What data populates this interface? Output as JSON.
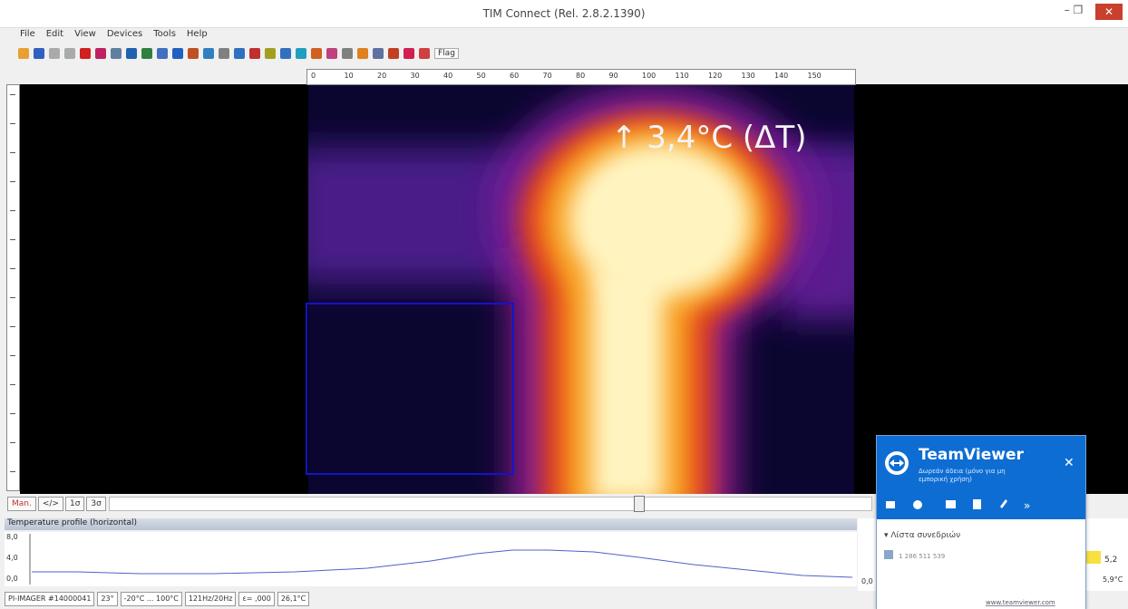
{
  "window": {
    "title": "TIM Connect (Rel. 2.8.2.1390)"
  },
  "menu": [
    "File",
    "Edit",
    "View",
    "Devices",
    "Tools",
    "Help"
  ],
  "toolbar": {
    "flag": "Flag"
  },
  "ruler": [
    "0",
    "10",
    "20",
    "30",
    "40",
    "50",
    "60",
    "70",
    "80",
    "90",
    "100",
    "110",
    "120",
    "130",
    "140",
    "150"
  ],
  "view": {
    "overlay": "↑ 3,4°C (ΔT)"
  },
  "buttons": [
    "Man.",
    "</>",
    "1σ",
    "3σ"
  ],
  "profile": {
    "title": "Temperature profile (horizontal)",
    "ylabels": [
      "8,0",
      "4,0",
      "0,0"
    ]
  },
  "side": {
    "min": "0,0",
    "value": "5,2",
    "max": "5,9°C"
  },
  "status": [
    "PI-IMAGER #14000041",
    "23°",
    "-20°C ... 100°C",
    "121Hz/20Hz",
    "ε= ,000",
    "26,1°C"
  ],
  "teamviewer": {
    "brand": "TeamViewer",
    "license_line1": "Δωρεάν άδεια (μόνο για μη",
    "license_line2": "εμπορική χρήση)",
    "section": "▾ Λίστα συνεδριών",
    "session": "1 286 511 539",
    "link": "www.teamviewer.com"
  }
}
